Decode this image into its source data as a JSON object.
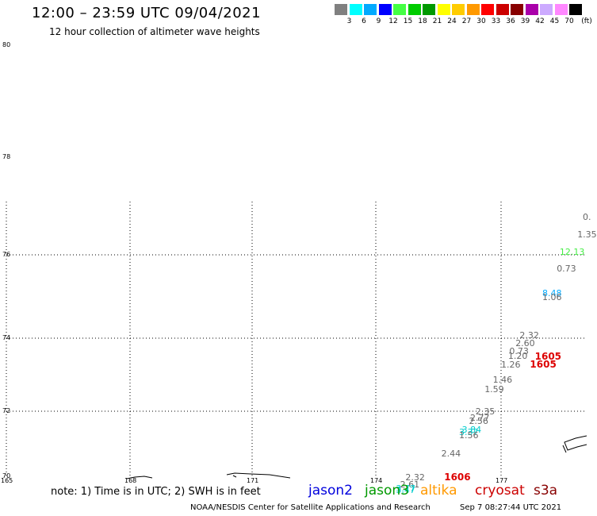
{
  "header": {
    "title": "12:00 – 23:59 UTC 09/04/2021",
    "subtitle": "12 hour collection of altimeter wave heights"
  },
  "colorbar": {
    "colors": [
      "#808080",
      "#00ffff",
      "#00aaff",
      "#0000ff",
      "#44ff44",
      "#00cc00",
      "#009900",
      "#ffff00",
      "#ffcc00",
      "#ff9900",
      "#ff0000",
      "#cc0000",
      "#880000",
      "#aa00aa",
      "#ccaaff",
      "#ff88ff",
      "#000000"
    ],
    "labels": [
      "3",
      "6",
      "9",
      "12",
      "15",
      "18",
      "21",
      "24",
      "27",
      "30",
      "33",
      "36",
      "39",
      "42",
      "45",
      "70"
    ],
    "unit": "(ft)"
  },
  "axes": {
    "y_labels": [
      "80",
      "78",
      "76",
      "74",
      "72",
      "70"
    ],
    "x_labels": [
      "165",
      "168",
      "171",
      "174",
      "177"
    ]
  },
  "heights": [
    {
      "text": "0.",
      "color": "#666666",
      "lon": 178.98,
      "lat": 76.78
    },
    {
      "text": "1.35",
      "color": "#666666",
      "lon": 178.85,
      "lat": 76.42
    },
    {
      "text": "12.13",
      "color": "#44ee44",
      "lon": 178.42,
      "lat": 76.07
    },
    {
      "text": "0.73",
      "color": "#666666",
      "lon": 178.35,
      "lat": 75.68
    },
    {
      "text": "8.48",
      "color": "#00aaff",
      "lon": 178.0,
      "lat": 75.08
    },
    {
      "text": "1.06",
      "color": "#666666",
      "lon": 178.0,
      "lat": 75.0
    },
    {
      "text": "2.32",
      "color": "#666666",
      "lon": 177.45,
      "lat": 74.08
    },
    {
      "text": "2.60",
      "color": "#666666",
      "lon": 177.35,
      "lat": 73.88
    },
    {
      "text": "0.73",
      "color": "#666666",
      "lon": 177.2,
      "lat": 73.66
    },
    {
      "text": "1.20",
      "color": "#666666",
      "lon": 177.17,
      "lat": 73.52
    },
    {
      "text": "1605",
      "color": "#dd0000",
      "lon": 177.82,
      "lat": 73.5,
      "big": true
    },
    {
      "text": "1605",
      "color": "#dd0000",
      "lon": 177.7,
      "lat": 73.28,
      "big": true
    },
    {
      "text": "1.26",
      "color": "#666666",
      "lon": 177.0,
      "lat": 73.28
    },
    {
      "text": "1.46",
      "color": "#666666",
      "lon": 176.8,
      "lat": 72.88
    },
    {
      "text": "1.59",
      "color": "#666666",
      "lon": 176.6,
      "lat": 72.6
    },
    {
      "text": "2.35",
      "color": "#666666",
      "lon": 176.38,
      "lat": 72.0
    },
    {
      "text": "2.77",
      "color": "#666666",
      "lon": 176.25,
      "lat": 71.8
    },
    {
      "text": "2.56",
      "color": "#666666",
      "lon": 176.22,
      "lat": 71.7
    },
    {
      "text": "3.84",
      "color": "#00cccc",
      "lon": 176.05,
      "lat": 71.44
    },
    {
      "text": "3.37",
      "color": "#00cccc",
      "lon": 175.98,
      "lat": 71.36
    },
    {
      "text": "1.56",
      "color": "#666666",
      "lon": 175.98,
      "lat": 71.28
    },
    {
      "text": "2.44",
      "color": "#666666",
      "lon": 175.55,
      "lat": 70.7
    },
    {
      "text": "2.32",
      "color": "#666666",
      "lon": 174.68,
      "lat": 69.98
    },
    {
      "text": "1606",
      "color": "#dd0000",
      "lon": 175.62,
      "lat": 69.98,
      "big": true
    },
    {
      "text": "2.61",
      "color": "#666666",
      "lon": 174.55,
      "lat": 69.75
    },
    {
      "text": "3.77",
      "color": "#00cccc",
      "lon": 174.45,
      "lat": 69.64
    },
    {
      "text": "3.47",
      "color": "#00cccc",
      "lon": 174.45,
      "lat": 69.58
    }
  ],
  "footer": {
    "note": "note:  1) Time is in UTC;  2) SWH is in feet",
    "satellites": [
      {
        "name": "jason2",
        "color": "#0000dd"
      },
      {
        "name": "jason3",
        "color": "#009900"
      },
      {
        "name": "altika",
        "color": "#ff9900"
      },
      {
        "name": "cryosat",
        "color": "#cc0000"
      },
      {
        "name": "s3a",
        "color": "#880000"
      }
    ],
    "credit": "NOAA/NESDIS Center for Satellite Applications and Research",
    "timestamp": "Sep  7 08:27:44 UTC 2021"
  }
}
